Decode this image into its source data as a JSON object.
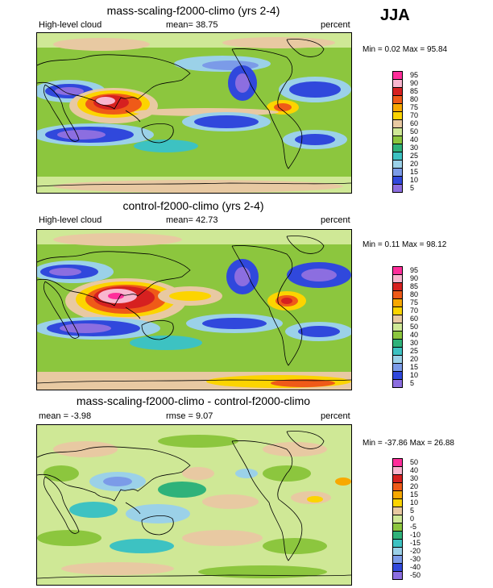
{
  "season": "JJA",
  "units": "percent",
  "panels": [
    {
      "title": "mass-scaling-f2000-climo (yrs 2-4)",
      "left_label": "High-level cloud",
      "center_label": "mean=  38.75",
      "right_label": "percent",
      "minmax": "Min =   0.02 Max =  95.84",
      "levels": [
        "95",
        "90",
        "85",
        "80",
        "75",
        "70",
        "60",
        "50",
        "40",
        "30",
        "25",
        "20",
        "15",
        "10",
        "5"
      ],
      "colors": [
        "#ff2d9a",
        "#f9b6cf",
        "#d62020",
        "#ef5a18",
        "#f8a800",
        "#fcd400",
        "#e8c9a2",
        "#cfe896",
        "#8cc63e",
        "#2fb27a",
        "#3dc2c2",
        "#9bd1e8",
        "#7b9be8",
        "#3048dc",
        "#8c6ee0"
      ]
    },
    {
      "title": "control-f2000-climo (yrs 2-4)",
      "left_label": "High-level cloud",
      "center_label": "mean=  42.73",
      "right_label": "percent",
      "minmax": "Min =   0.11 Max =  98.12",
      "levels": [
        "95",
        "90",
        "85",
        "80",
        "75",
        "70",
        "60",
        "50",
        "40",
        "30",
        "25",
        "20",
        "15",
        "10",
        "5"
      ],
      "colors": [
        "#ff2d9a",
        "#f9b6cf",
        "#d62020",
        "#ef5a18",
        "#f8a800",
        "#fcd400",
        "#e8c9a2",
        "#cfe896",
        "#8cc63e",
        "#2fb27a",
        "#3dc2c2",
        "#9bd1e8",
        "#7b9be8",
        "#3048dc",
        "#8c6ee0"
      ]
    },
    {
      "title": "mass-scaling-f2000-climo - control-f2000-climo",
      "left_label": "mean =  -3.98",
      "center_label": "rmse =   9.07",
      "right_label": "percent",
      "minmax": "Min = -37.86 Max =  26.88",
      "levels": [
        "50",
        "40",
        "30",
        "20",
        "15",
        "10",
        "5",
        "0",
        "-5",
        "-10",
        "-15",
        "-20",
        "-30",
        "-40",
        "-50"
      ],
      "colors": [
        "#ff2d9a",
        "#f9b6cf",
        "#d62020",
        "#ef5a18",
        "#f8a800",
        "#fcd400",
        "#e8c9a2",
        "#cfe896",
        "#8cc63e",
        "#2fb27a",
        "#3dc2c2",
        "#9bd1e8",
        "#7b9be8",
        "#3048dc",
        "#8c6ee0"
      ]
    }
  ]
}
